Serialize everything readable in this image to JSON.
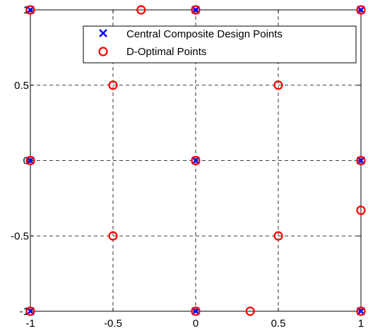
{
  "chart_data": {
    "type": "scatter",
    "xlim": [
      -1,
      1
    ],
    "ylim": [
      -1,
      1
    ],
    "x_ticks": [
      -1,
      -0.5,
      0,
      0.5,
      1
    ],
    "y_ticks": [
      -1,
      -0.5,
      0,
      0.5,
      1
    ],
    "x_tick_labels": [
      "-1",
      "-0.5",
      "0",
      "0.5",
      "1"
    ],
    "y_tick_labels": [
      "-1",
      "-0.5",
      "0",
      "0.5",
      "1"
    ],
    "grid": true,
    "grid_style": "dashed",
    "legend_position": "top-right",
    "series": [
      {
        "name": "Central Composite Design Points",
        "marker": "x",
        "color": "#0000ff",
        "points": [
          [
            -1,
            -1
          ],
          [
            -1,
            0
          ],
          [
            -1,
            1
          ],
          [
            0,
            -1
          ],
          [
            0,
            0
          ],
          [
            0,
            1
          ],
          [
            1,
            -1
          ],
          [
            1,
            0
          ],
          [
            1,
            1
          ]
        ]
      },
      {
        "name": "D-Optimal Points",
        "marker": "o",
        "color": "#ff0000",
        "points": [
          [
            -1,
            1
          ],
          [
            -0.33,
            1
          ],
          [
            0,
            1
          ],
          [
            1,
            1
          ],
          [
            -0.5,
            0.5
          ],
          [
            0.5,
            0.5
          ],
          [
            -1,
            0
          ],
          [
            0,
            0
          ],
          [
            1,
            0
          ],
          [
            1,
            -0.33
          ],
          [
            -0.5,
            -0.5
          ],
          [
            0.5,
            -0.5
          ],
          [
            -1,
            -1
          ],
          [
            0,
            -1
          ],
          [
            0.33,
            -1
          ],
          [
            1,
            -1
          ]
        ]
      }
    ]
  }
}
